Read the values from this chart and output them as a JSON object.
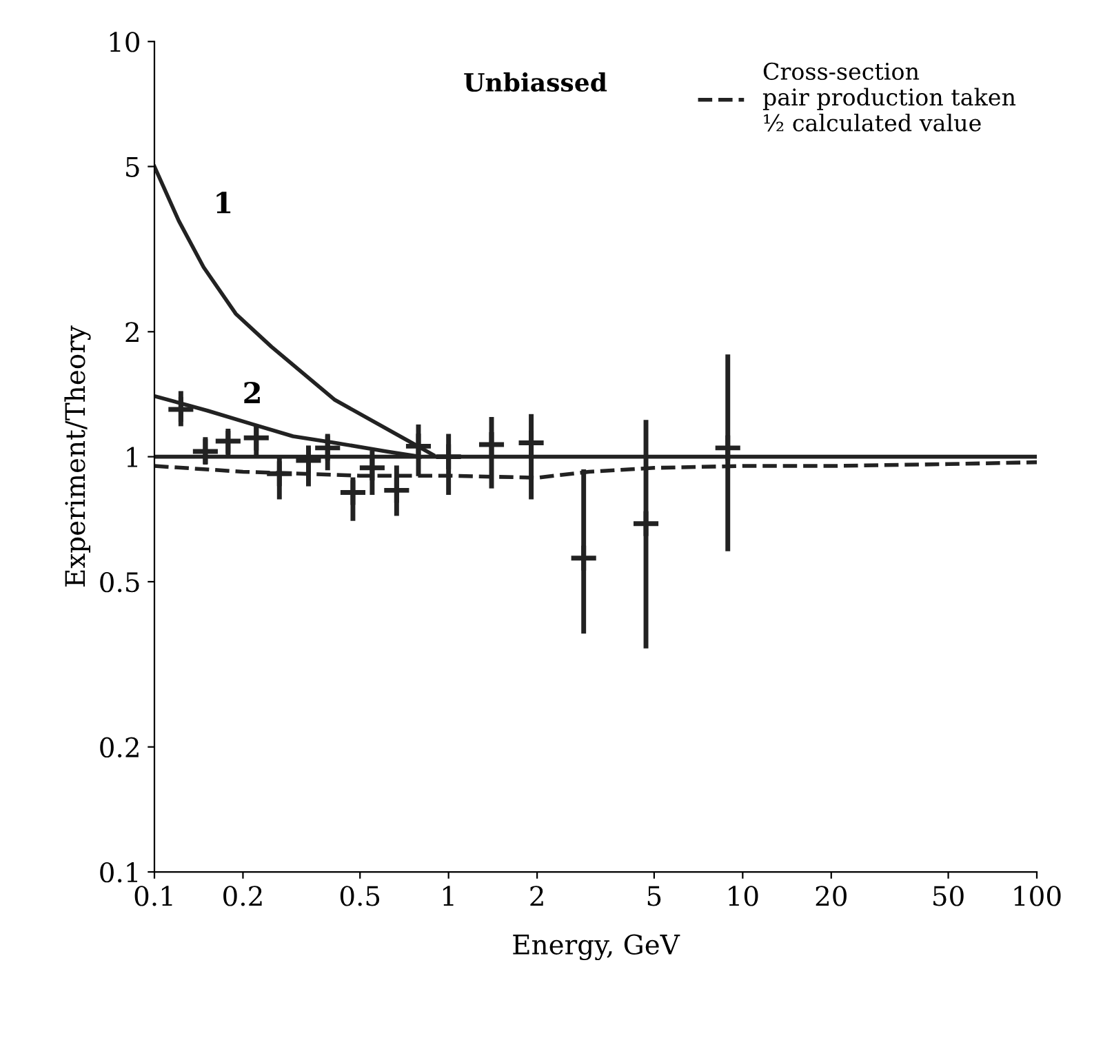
{
  "chart_data": {
    "type": "scatter",
    "xlabel": "Energy, GeV",
    "ylabel": "Experiment/Theory",
    "annotations": [
      "Unbiassed"
    ],
    "log": "xy",
    "xlim": [
      0.1,
      100
    ],
    "ylim": [
      0.1,
      10
    ],
    "xticks": [
      0.1,
      0.2,
      0.5,
      1,
      2,
      5,
      10,
      20,
      50,
      100
    ],
    "yticks": [
      0.1,
      0.2,
      0.5,
      1,
      2,
      5,
      10
    ],
    "grid": false,
    "legend": "top right",
    "ref_lines": [
      {
        "axis": "y",
        "value": 1,
        "color": "#222222",
        "line_style": "solid"
      }
    ],
    "series": [
      {
        "color": "#222222",
        "marker": "cross",
        "x": [
          0.123,
          0.149,
          0.178,
          0.222,
          0.266,
          0.334,
          0.388,
          0.473,
          0.55,
          0.666,
          0.79,
          1.0,
          1.4,
          1.91,
          2.88,
          4.69,
          8.9
        ],
        "values": [
          1.3,
          1.03,
          1.09,
          1.11,
          0.91,
          0.98,
          1.05,
          0.82,
          0.94,
          0.83,
          1.06,
          1.0,
          1.07,
          1.08,
          0.57,
          0.69,
          1.05
        ],
        "errors": [
          [
            1.2,
            1.42
          ],
          [
            0.97,
            1.1
          ],
          [
            1.01,
            1.14
          ],
          [
            1.02,
            1.17
          ],
          [
            0.8,
            0.98
          ],
          [
            0.86,
            1.05
          ],
          [
            0.94,
            1.12
          ],
          [
            0.71,
            0.88
          ],
          [
            0.82,
            1.02
          ],
          [
            0.73,
            0.94
          ],
          [
            0.91,
            1.18
          ],
          [
            0.82,
            1.12
          ],
          [
            0.85,
            1.23
          ],
          [
            0.8,
            1.25
          ],
          [
            0.38,
            0.92
          ],
          [
            0.35,
            1.21
          ],
          [
            0.6,
            1.74
          ]
        ]
      },
      {
        "type": "line",
        "name": "1",
        "color": "#222222",
        "marker": "none",
        "line_style": "solid",
        "x": [
          0.1,
          0.121,
          0.147,
          0.189,
          0.25,
          0.411,
          0.75,
          0.887
        ],
        "values": [
          5.0,
          3.7,
          2.86,
          2.21,
          1.84,
          1.37,
          1.08,
          1.01
        ]
      },
      {
        "type": "line",
        "name": "2",
        "color": "#222222",
        "marker": "none",
        "line_style": "solid",
        "x": [
          0.1,
          0.152,
          0.213,
          0.296,
          0.411,
          0.615,
          0.8
        ],
        "values": [
          1.4,
          1.29,
          1.2,
          1.12,
          1.08,
          1.03,
          1.0
        ]
      },
      {
        "type": "line",
        "name": "Cross-section\npair production taken\n½ calculated value",
        "color": "#222222",
        "marker": "none",
        "line_style": "dashed",
        "x": [
          0.1,
          0.2,
          0.5,
          1,
          2,
          3,
          5,
          10,
          20,
          50,
          100
        ],
        "values": [
          0.95,
          0.92,
          0.9,
          0.9,
          0.89,
          0.92,
          0.94,
          0.95,
          0.95,
          0.96,
          0.97
        ]
      }
    ]
  }
}
